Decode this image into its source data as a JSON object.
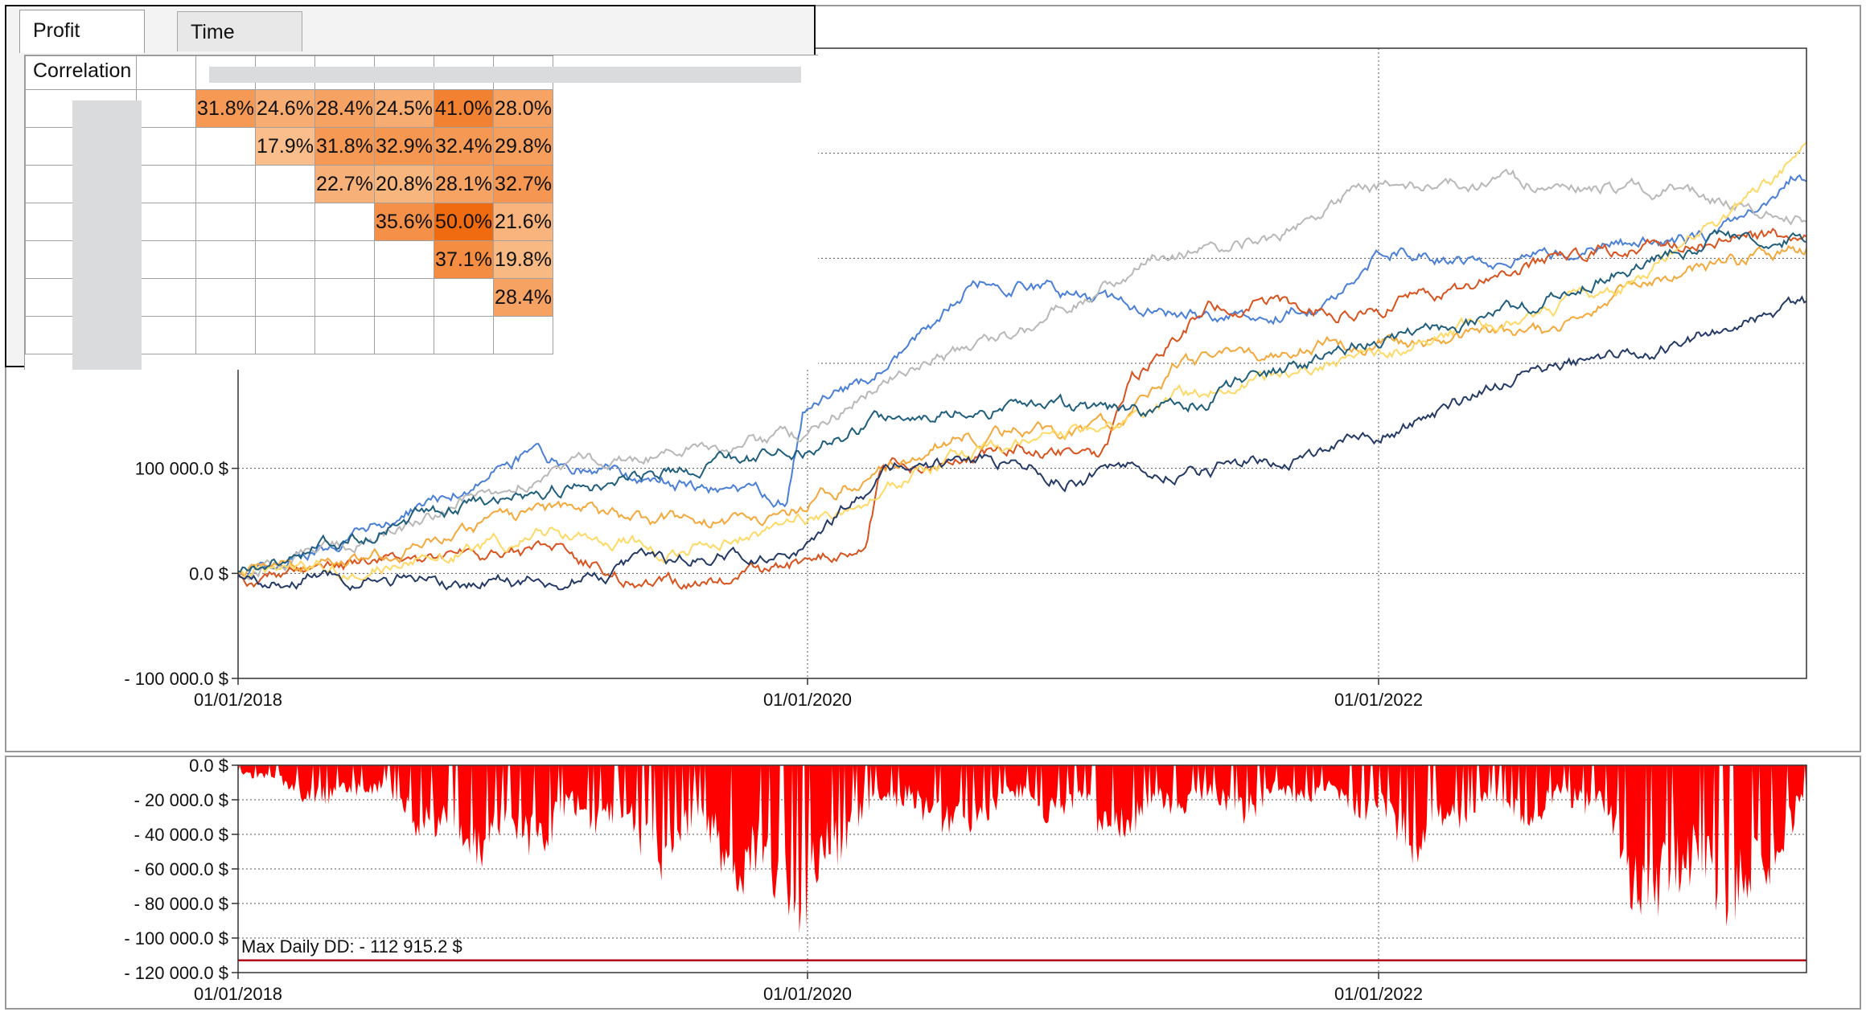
{
  "tabs": [
    {
      "label": "Profit Correlation",
      "active": true
    },
    {
      "label": "Time Correlation",
      "active": false
    }
  ],
  "correlation_rows": [
    [
      "",
      "31.8%",
      "24.6%",
      "28.4%",
      "24.5%",
      "41.0%",
      "28.0%"
    ],
    [
      "",
      "",
      "17.9%",
      "31.8%",
      "32.9%",
      "32.4%",
      "29.8%"
    ],
    [
      "",
      "",
      "",
      "22.7%",
      "20.8%",
      "28.1%",
      "32.7%"
    ],
    [
      "",
      "",
      "",
      "",
      "35.6%",
      "50.0%",
      "21.6%"
    ],
    [
      "",
      "",
      "",
      "",
      "",
      "37.1%",
      "19.8%"
    ],
    [
      "",
      "",
      "",
      "",
      "",
      "",
      "28.4%"
    ],
    [
      "",
      "",
      "",
      "",
      "",
      "",
      ""
    ]
  ],
  "correlation_colors": {
    "low": "#f9c08e",
    "high": "#f06a10"
  },
  "equity_chart": {
    "y_ticks": [
      "100 000.0 $",
      "0.0 $",
      "- 100 000.0 $"
    ],
    "x_ticks": [
      "01/01/2018",
      "01/01/2020",
      "01/01/2022"
    ],
    "ylim": [
      -100000,
      500000
    ],
    "series_colors": [
      "#4a7fd8",
      "#b8b8b8",
      "#d9531e",
      "#f5a83a",
      "#ffd966",
      "#1f5e7d",
      "#243a66"
    ]
  },
  "drawdown_chart": {
    "y_ticks": [
      "0.0 $",
      "- 20 000.0 $",
      "- 40 000.0 $",
      "- 60 000.0 $",
      "- 80 000.0 $",
      "- 100 000.0 $",
      "- 120 000.0 $"
    ],
    "x_ticks": [
      "01/01/2018",
      "01/01/2020",
      "01/01/2022"
    ],
    "max_dd_label": "Max Daily DD: - 112 915.2 $",
    "max_dd_value": -112915.2,
    "ylim": [
      -120000,
      0
    ],
    "fill_color": "#ff0000",
    "max_line_color": "#b5001a"
  }
}
